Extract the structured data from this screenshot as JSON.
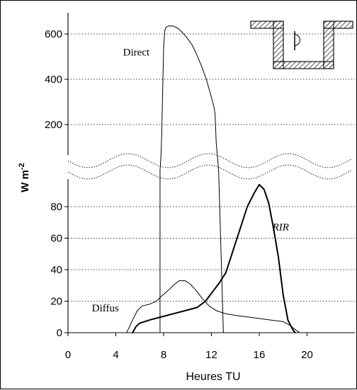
{
  "chart_data": {
    "type": "line",
    "xlabel": "Heures TU",
    "ylabel_main": "W m",
    "ylabel_exp": "-2",
    "x_ticks": [
      0,
      4,
      8,
      12,
      16,
      20
    ],
    "x_range": [
      0,
      24
    ],
    "upper_y_ticks": [
      200,
      400,
      600
    ],
    "upper_y_range": [
      0,
      650
    ],
    "lower_y_ticks": [
      0,
      20,
      40,
      60,
      80
    ],
    "lower_y_range": [
      0,
      100
    ],
    "upper_grid": [
      200,
      400,
      600
    ],
    "lower_grid": [
      20,
      40,
      60,
      80
    ],
    "break_y_upper": 640,
    "break_y_lower": 95,
    "series": [
      {
        "name": "Direct",
        "panel": "upper",
        "label_italic": false,
        "label_anchor_x": 4.6,
        "label_anchor_y": 505,
        "color": "#000000",
        "stroke": 1.0,
        "points": [
          [
            7.7,
            0
          ],
          [
            7.75,
            35
          ],
          [
            7.8,
            90
          ],
          [
            7.85,
            180
          ],
          [
            7.9,
            300
          ],
          [
            7.95,
            420
          ],
          [
            8.0,
            540
          ],
          [
            8.1,
            615
          ],
          [
            8.2,
            630
          ],
          [
            8.4,
            635
          ],
          [
            8.8,
            635
          ],
          [
            9.2,
            625
          ],
          [
            9.6,
            605
          ],
          [
            10.0,
            580
          ],
          [
            10.4,
            550
          ],
          [
            10.8,
            505
          ],
          [
            11.2,
            455
          ],
          [
            11.6,
            395
          ],
          [
            12.0,
            320
          ],
          [
            12.2,
            280
          ],
          [
            12.3,
            250
          ],
          [
            12.4,
            120
          ],
          [
            12.6,
            0
          ]
        ]
      },
      {
        "name": "Diffus",
        "panel": "lower",
        "label_italic": false,
        "label_anchor_x": 2.0,
        "label_anchor_y": 13.5,
        "color": "#000000",
        "stroke": 1.0,
        "points": [
          [
            4.9,
            0
          ],
          [
            5.1,
            3
          ],
          [
            5.4,
            8
          ],
          [
            5.8,
            14
          ],
          [
            6.2,
            17
          ],
          [
            6.8,
            18
          ],
          [
            7.4,
            20
          ],
          [
            7.8,
            23
          ],
          [
            8.4,
            27
          ],
          [
            8.8,
            30
          ],
          [
            9.3,
            33
          ],
          [
            9.8,
            33
          ],
          [
            10.2,
            31
          ],
          [
            10.7,
            27
          ],
          [
            11.2,
            22
          ],
          [
            11.8,
            17
          ],
          [
            12.4,
            14
          ],
          [
            13.2,
            12
          ],
          [
            14.0,
            11
          ],
          [
            15.0,
            10
          ],
          [
            16.0,
            9
          ],
          [
            17.0,
            8
          ],
          [
            18.0,
            7
          ],
          [
            18.5,
            5
          ],
          [
            19.0,
            2
          ],
          [
            19.4,
            0
          ]
        ]
      },
      {
        "name": "RIR",
        "panel": "lower",
        "label_italic": true,
        "label_anchor_x": 17.1,
        "label_anchor_y": 65,
        "color": "#000000",
        "stroke": 2.0,
        "points": [
          [
            5.4,
            0
          ],
          [
            5.7,
            4
          ],
          [
            6.0,
            6
          ],
          [
            6.8,
            8
          ],
          [
            7.8,
            10
          ],
          [
            8.8,
            12
          ],
          [
            9.8,
            14
          ],
          [
            10.8,
            16
          ],
          [
            11.5,
            20
          ],
          [
            12.0,
            25
          ],
          [
            12.6,
            31
          ],
          [
            13.2,
            38
          ],
          [
            13.8,
            52
          ],
          [
            14.4,
            66
          ],
          [
            15.0,
            80
          ],
          [
            15.6,
            89
          ],
          [
            16.0,
            94
          ],
          [
            16.4,
            91
          ],
          [
            16.8,
            82
          ],
          [
            17.2,
            66
          ],
          [
            17.6,
            48
          ],
          [
            18.0,
            24
          ],
          [
            18.4,
            8
          ],
          [
            18.8,
            2
          ],
          [
            19.0,
            0
          ]
        ]
      }
    ]
  }
}
